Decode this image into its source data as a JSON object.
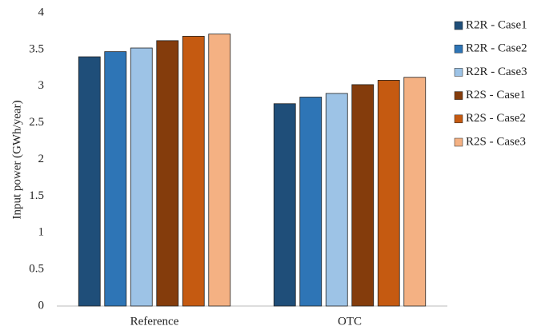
{
  "chart_data": {
    "type": "bar",
    "y_label": "Input power (GWh/year)",
    "categories": [
      "Reference",
      "OTC"
    ],
    "series": [
      {
        "name": "R2R - Case1",
        "color": "#1f4e79",
        "values": [
          3.4,
          2.76
        ]
      },
      {
        "name": "R2R - Case2",
        "color": "#2e75b6",
        "values": [
          3.47,
          2.85
        ]
      },
      {
        "name": "R2R - Case3",
        "color": "#9dc3e6",
        "values": [
          3.52,
          2.9
        ]
      },
      {
        "name": "R2S - Case1",
        "color": "#843c0c",
        "values": [
          3.62,
          3.02
        ]
      },
      {
        "name": "R2S - Case2",
        "color": "#c55a11",
        "values": [
          3.68,
          3.08
        ]
      },
      {
        "name": "R2S - Case3",
        "color": "#f4b183",
        "values": [
          3.71,
          3.12
        ]
      }
    ],
    "ylim": [
      0,
      4
    ],
    "yticks": [
      0,
      0.5,
      1,
      1.5,
      2,
      2.5,
      3,
      3.5,
      4
    ],
    "grid": false,
    "legend": "right"
  }
}
